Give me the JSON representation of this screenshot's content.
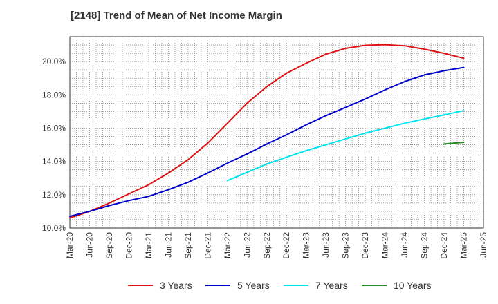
{
  "title": "[2148]  Trend of Mean of Net Income Margin",
  "chart_data": {
    "type": "line",
    "title": "[2148]  Trend of Mean of Net Income Margin",
    "xlabel": "",
    "ylabel": "",
    "x_ticks": [
      "Mar-20",
      "Jun-20",
      "Sep-20",
      "Dec-20",
      "Mar-21",
      "Jun-21",
      "Sep-21",
      "Dec-21",
      "Mar-22",
      "Jun-22",
      "Sep-22",
      "Dec-22",
      "Mar-23",
      "Jun-23",
      "Sep-23",
      "Dec-23",
      "Mar-24",
      "Jun-24",
      "Sep-24",
      "Dec-24",
      "Mar-25",
      "Jun-25"
    ],
    "y_ticks": [
      "10.0%",
      "12.0%",
      "14.0%",
      "16.0%",
      "18.0%",
      "20.0%"
    ],
    "y_tick_values": [
      10,
      12,
      14,
      16,
      18,
      20
    ],
    "ylim": [
      10,
      21.5
    ],
    "grid": true,
    "legend_position": "bottom",
    "series": [
      {
        "name": "3 Years",
        "color": "#dd1111",
        "x": [
          "Mar-20",
          "Jun-20",
          "Sep-20",
          "Dec-20",
          "Mar-21",
          "Jun-21",
          "Sep-21",
          "Dec-21",
          "Mar-22",
          "Jun-22",
          "Sep-22",
          "Dec-22",
          "Mar-23",
          "Jun-23",
          "Sep-23",
          "Dec-23",
          "Mar-24",
          "Jun-24",
          "Sep-24",
          "Dec-24",
          "Mar-25"
        ],
        "values": [
          10.6,
          11.0,
          11.5,
          12.05,
          12.6,
          13.3,
          14.1,
          15.1,
          16.3,
          17.5,
          18.5,
          19.3,
          19.9,
          20.45,
          20.8,
          20.98,
          21.02,
          20.95,
          20.75,
          20.5,
          20.2
        ]
      },
      {
        "name": "5 Years",
        "color": "#0000cc",
        "x": [
          "Mar-20",
          "Jun-20",
          "Sep-20",
          "Dec-20",
          "Mar-21",
          "Jun-21",
          "Sep-21",
          "Dec-21",
          "Mar-22",
          "Jun-22",
          "Sep-22",
          "Dec-22",
          "Mar-23",
          "Jun-23",
          "Sep-23",
          "Dec-23",
          "Mar-24",
          "Jun-24",
          "Sep-24",
          "Dec-24",
          "Mar-25"
        ],
        "values": [
          10.7,
          11.0,
          11.35,
          11.65,
          11.9,
          12.3,
          12.75,
          13.3,
          13.9,
          14.45,
          15.05,
          15.6,
          16.2,
          16.75,
          17.25,
          17.75,
          18.3,
          18.8,
          19.2,
          19.45,
          19.65
        ]
      },
      {
        "name": "7 Years",
        "color": "#00e5ee",
        "x": [
          "Mar-22",
          "Jun-22",
          "Sep-22",
          "Dec-22",
          "Mar-23",
          "Jun-23",
          "Sep-23",
          "Dec-23",
          "Mar-24",
          "Jun-24",
          "Sep-24",
          "Dec-24",
          "Mar-25"
        ],
        "values": [
          12.85,
          13.35,
          13.85,
          14.25,
          14.65,
          15.0,
          15.35,
          15.7,
          16.0,
          16.3,
          16.55,
          16.8,
          17.05
        ]
      },
      {
        "name": "10 Years",
        "color": "#228b22",
        "x": [
          "Dec-24",
          "Mar-25"
        ],
        "values": [
          15.05,
          15.15
        ]
      }
    ]
  }
}
